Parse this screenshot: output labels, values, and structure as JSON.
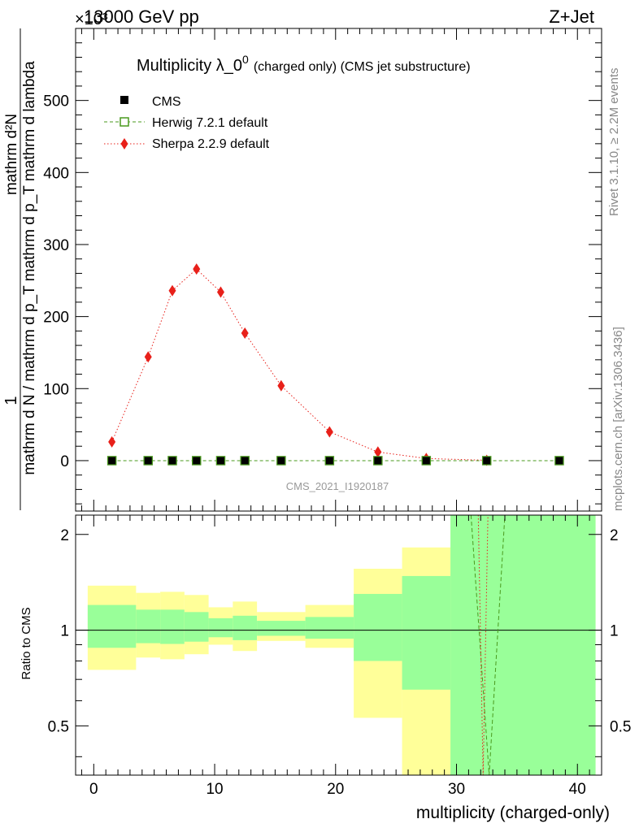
{
  "header": {
    "energy_label": "13000 GeV pp",
    "process_label": "Z+Jet",
    "exponent_label": "×10³"
  },
  "side_labels": {
    "rivet": "Rivet 3.1.10, ≥ 2.2M events",
    "mcplots": "mcplots.cern.ch [arXiv:1306.3436]"
  },
  "chart_data": {
    "type": "line",
    "title": "Multiplicity λ_0⁰ (charged only) (CMS jet substructure)",
    "title_main": "Multiplicity λ_0",
    "title_sup": "0",
    "title_rest": "(charged only) (CMS jet substructure)",
    "analysis_id": "CMS_2021_I1920187",
    "xlabel": "multiplicity (charged-only)",
    "ylabel_top": "mathrm d N / mathrm d p_T mathrm d p_T mathrm d lambda",
    "ylabel_top_num": "mathrm d²N",
    "ylabel_top_one": "1",
    "ylabel_bottom": "Ratio to CMS",
    "xlim": [
      -1.5,
      42
    ],
    "ylim": [
      -70000,
      600000
    ],
    "ratio_ylim": [
      0.35,
      2.3
    ],
    "x_ticks": [
      0,
      10,
      20,
      30,
      40
    ],
    "y_ticks": [
      0,
      100,
      200,
      300,
      400,
      500
    ],
    "ratio_ticks": [
      0.5,
      1,
      2
    ],
    "ratio_tick_labels": [
      "0.5",
      "1",
      "2"
    ],
    "legend": {
      "position": "top-left",
      "entries": [
        "CMS",
        "Herwig 7.2.1 default",
        "Sherpa 2.2.9 default"
      ]
    },
    "series": [
      {
        "name": "CMS",
        "color": "#000000",
        "marker": "filled-square",
        "x": [
          1.5,
          4.5,
          6.5,
          8.5,
          10.5,
          12.5,
          15.5,
          19.5,
          23.5,
          27.5,
          32.5,
          38.5
        ],
        "y": [
          0,
          0,
          0,
          0,
          0,
          0,
          0,
          0,
          0,
          0,
          0,
          0
        ]
      },
      {
        "name": "Herwig 7.2.1 default",
        "color": "#4a9a1e",
        "marker": "open-square",
        "line": "dashed",
        "x": [
          1.5,
          4.5,
          6.5,
          8.5,
          10.5,
          12.5,
          15.5,
          19.5,
          23.5,
          27.5,
          32.5,
          38.5
        ],
        "y": [
          0,
          0,
          0,
          0,
          0,
          0,
          0,
          0,
          0,
          0,
          0,
          0
        ]
      },
      {
        "name": "Sherpa 2.2.9 default",
        "color": "#e8201a",
        "marker": "filled-diamond",
        "line": "dotted",
        "x": [
          1.5,
          4.5,
          6.5,
          8.5,
          10.5,
          12.5,
          15.5,
          19.5,
          23.5,
          27.5,
          32.5
        ],
        "y": [
          26000,
          144000,
          236000,
          266000,
          234000,
          177000,
          104000,
          40000,
          12000,
          3000,
          500
        ]
      }
    ],
    "ratio_bands": [
      {
        "x0": -0.5,
        "x1": 3.5,
        "outer": [
          0.75,
          1.38
        ],
        "inner": [
          0.88,
          1.2
        ]
      },
      {
        "x0": 3.5,
        "x1": 5.5,
        "outer": [
          0.82,
          1.31
        ],
        "inner": [
          0.91,
          1.16
        ]
      },
      {
        "x0": 5.5,
        "x1": 7.5,
        "outer": [
          0.81,
          1.32
        ],
        "inner": [
          0.905,
          1.16
        ]
      },
      {
        "x0": 7.5,
        "x1": 9.5,
        "outer": [
          0.84,
          1.29
        ],
        "inner": [
          0.92,
          1.14
        ]
      },
      {
        "x0": 9.5,
        "x1": 11.5,
        "outer": [
          0.9,
          1.18
        ],
        "inner": [
          0.95,
          1.09
        ]
      },
      {
        "x0": 11.5,
        "x1": 13.5,
        "outer": [
          0.86,
          1.23
        ],
        "inner": [
          0.93,
          1.11
        ]
      },
      {
        "x0": 13.5,
        "x1": 17.5,
        "outer": [
          0.925,
          1.14
        ],
        "inner": [
          0.96,
          1.07
        ]
      },
      {
        "x0": 17.5,
        "x1": 21.5,
        "outer": [
          0.88,
          1.2
        ],
        "inner": [
          0.94,
          1.1
        ]
      },
      {
        "x0": 21.5,
        "x1": 25.5,
        "outer": [
          0.53,
          1.56
        ],
        "inner": [
          0.8,
          1.3
        ]
      },
      {
        "x0": 25.5,
        "x1": 29.5,
        "outer": [
          0.35,
          1.82
        ],
        "inner": [
          0.65,
          1.48
        ]
      },
      {
        "x0": 29.5,
        "x1": 41.5,
        "outer": [
          0.35,
          2.3
        ],
        "inner": [
          0.35,
          2.3
        ]
      }
    ],
    "ratio_reference": 1,
    "ratio_series": [
      {
        "name": "Herwig 7.2.1 default",
        "color": "#4a9a1e",
        "style": "dashed",
        "x": [
          31.2,
          32.7,
          34.0
        ],
        "y": [
          2.3,
          0.35,
          2.3
        ]
      },
      {
        "name": "Sherpa 2.2.9 default",
        "color": "#e8201a",
        "style": "dotted",
        "x": [
          31.8,
          32.2,
          32.6
        ],
        "y": [
          2.3,
          0.35,
          2.3
        ]
      }
    ]
  }
}
